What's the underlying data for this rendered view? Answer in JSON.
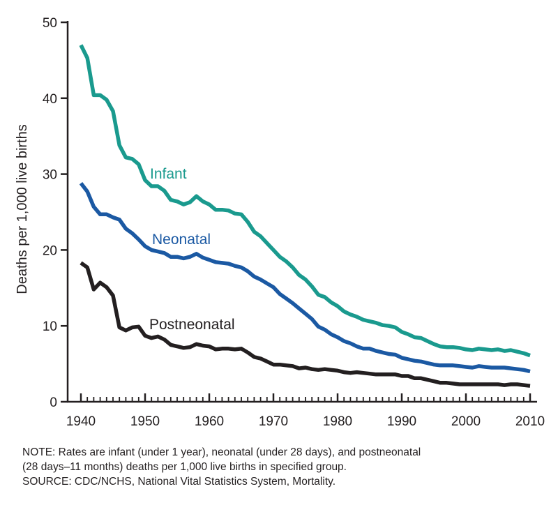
{
  "chart_data": {
    "type": "line",
    "title": "",
    "xlabel": "",
    "ylabel": "Deaths per 1,000 live births",
    "xlim": [
      1940,
      2010
    ],
    "ylim": [
      0,
      50
    ],
    "x_ticks": [
      1940,
      1950,
      1960,
      1970,
      1980,
      1990,
      2000,
      2010
    ],
    "y_ticks": [
      0,
      10,
      20,
      30,
      40,
      50
    ],
    "grid": false,
    "x": [
      1940,
      1941,
      1942,
      1943,
      1944,
      1945,
      1946,
      1947,
      1948,
      1949,
      1950,
      1951,
      1952,
      1953,
      1954,
      1955,
      1956,
      1957,
      1958,
      1959,
      1960,
      1961,
      1962,
      1963,
      1964,
      1965,
      1966,
      1967,
      1968,
      1969,
      1970,
      1971,
      1972,
      1973,
      1974,
      1975,
      1976,
      1977,
      1978,
      1979,
      1980,
      1981,
      1982,
      1983,
      1984,
      1985,
      1986,
      1987,
      1988,
      1989,
      1990,
      1991,
      1992,
      1993,
      1994,
      1995,
      1996,
      1997,
      1998,
      1999,
      2000,
      2001,
      2002,
      2003,
      2004,
      2005,
      2006,
      2007,
      2008,
      2009,
      2010
    ],
    "series": [
      {
        "name": "Infant",
        "color": "#1a9a8e",
        "values": [
          47.0,
          45.3,
          40.4,
          40.4,
          39.8,
          38.3,
          33.8,
          32.2,
          32.0,
          31.3,
          29.2,
          28.4,
          28.4,
          27.8,
          26.6,
          26.4,
          26.0,
          26.3,
          27.1,
          26.4,
          26.0,
          25.3,
          25.3,
          25.2,
          24.8,
          24.7,
          23.7,
          22.4,
          21.8,
          20.9,
          20.0,
          19.1,
          18.5,
          17.7,
          16.7,
          16.1,
          15.2,
          14.1,
          13.8,
          13.1,
          12.6,
          11.9,
          11.5,
          11.2,
          10.8,
          10.6,
          10.4,
          10.1,
          10.0,
          9.8,
          9.2,
          8.9,
          8.5,
          8.4,
          8.0,
          7.6,
          7.3,
          7.2,
          7.2,
          7.1,
          6.9,
          6.8,
          7.0,
          6.9,
          6.8,
          6.9,
          6.7,
          6.8,
          6.6,
          6.4,
          6.1
        ]
      },
      {
        "name": "Neonatal",
        "color": "#1b59a3",
        "values": [
          28.8,
          27.7,
          25.7,
          24.7,
          24.7,
          24.3,
          24.0,
          22.8,
          22.2,
          21.4,
          20.5,
          20.0,
          19.8,
          19.6,
          19.1,
          19.1,
          18.9,
          19.1,
          19.5,
          19.0,
          18.7,
          18.4,
          18.3,
          18.2,
          17.9,
          17.7,
          17.2,
          16.5,
          16.1,
          15.6,
          15.1,
          14.2,
          13.6,
          13.0,
          12.3,
          11.6,
          10.9,
          9.9,
          9.5,
          8.9,
          8.5,
          8.0,
          7.7,
          7.3,
          7.0,
          7.0,
          6.7,
          6.5,
          6.3,
          6.2,
          5.8,
          5.6,
          5.4,
          5.3,
          5.1,
          4.9,
          4.8,
          4.8,
          4.8,
          4.7,
          4.6,
          4.5,
          4.7,
          4.6,
          4.5,
          4.5,
          4.5,
          4.4,
          4.3,
          4.2,
          4.0
        ]
      },
      {
        "name": "Postneonatal",
        "color": "#231f20",
        "values": [
          18.3,
          17.7,
          14.8,
          15.7,
          15.1,
          14.0,
          9.8,
          9.4,
          9.8,
          9.9,
          8.7,
          8.4,
          8.6,
          8.2,
          7.5,
          7.3,
          7.1,
          7.2,
          7.6,
          7.4,
          7.3,
          6.9,
          7.0,
          7.0,
          6.9,
          7.0,
          6.5,
          5.9,
          5.7,
          5.3,
          4.9,
          4.9,
          4.8,
          4.7,
          4.4,
          4.5,
          4.3,
          4.2,
          4.3,
          4.2,
          4.1,
          3.9,
          3.8,
          3.9,
          3.8,
          3.7,
          3.6,
          3.6,
          3.6,
          3.6,
          3.4,
          3.4,
          3.1,
          3.1,
          2.9,
          2.7,
          2.5,
          2.5,
          2.4,
          2.3,
          2.3,
          2.3,
          2.3,
          2.3,
          2.3,
          2.3,
          2.2,
          2.3,
          2.3,
          2.2,
          2.1
        ]
      }
    ]
  },
  "note": {
    "line1": "NOTE: Rates are infant (under 1 year), neonatal (under 28 days), and postneonatal",
    "line2": "(28 days–11 months) deaths per 1,000 live births in specified group.",
    "line3": "SOURCE: CDC/NCHS, National Vital Statistics System, Mortality."
  }
}
